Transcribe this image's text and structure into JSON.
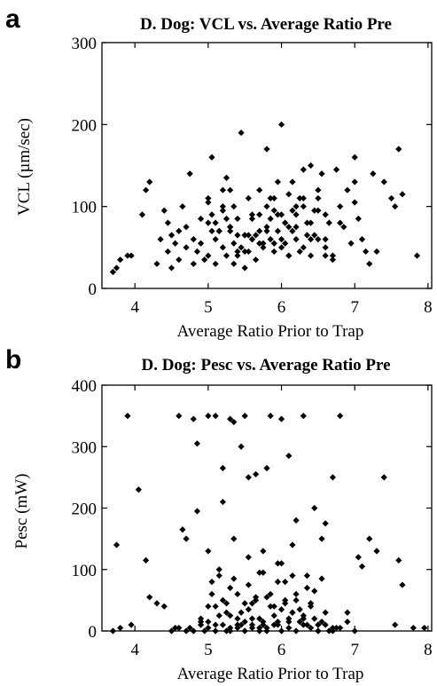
{
  "chart_data": [
    {
      "panel_label": "a",
      "type": "scatter",
      "title": "D. Dog: VCL vs. Average Ratio Pre",
      "xlabel": "Average Ratio Prior to Trap",
      "ylabel": "VCL (µm/sec)",
      "xlim": [
        3.55,
        8.05
      ],
      "ylim": [
        0,
        300
      ],
      "xticks": [
        4,
        5,
        6,
        7,
        8
      ],
      "yticks": [
        0,
        100,
        200,
        300
      ],
      "grid": false,
      "marker": "diamond",
      "color": "#000000",
      "series": [
        {
          "x": [
            3.7,
            3.75,
            3.8,
            3.9,
            3.95,
            4.1,
            4.15,
            4.2,
            4.3,
            4.35,
            4.4,
            4.45,
            4.45,
            4.5,
            4.5,
            4.55,
            4.6,
            4.6,
            4.65,
            4.7,
            4.75,
            4.8,
            4.8,
            4.85,
            4.9,
            4.95,
            5.0,
            5.0,
            5.05,
            5.05,
            5.1,
            5.1,
            5.15,
            5.2,
            5.2,
            5.25,
            5.25,
            5.3,
            5.3,
            5.35,
            5.35,
            5.4,
            5.4,
            5.45,
            5.5,
            5.5,
            5.55,
            5.55,
            5.6,
            5.6,
            5.65,
            5.7,
            5.7,
            5.75,
            5.8,
            5.8,
            5.85,
            5.85,
            5.9,
            5.9,
            5.95,
            5.95,
            6.0,
            6.0,
            6.05,
            6.05,
            6.1,
            6.1,
            6.15,
            6.15,
            6.2,
            6.2,
            6.25,
            6.3,
            6.3,
            6.35,
            6.4,
            6.4,
            6.45,
            6.5,
            6.5,
            6.55,
            6.6,
            6.6,
            6.65,
            6.7,
            6.75,
            6.8,
            6.85,
            6.9,
            6.95,
            7.0,
            7.0,
            7.05,
            7.1,
            7.15,
            7.25,
            7.3,
            7.4,
            7.5,
            7.55,
            7.6,
            7.65,
            7.85,
            5.0,
            5.1,
            5.2,
            5.3,
            5.4,
            5.5,
            5.6,
            5.7,
            5.8,
            5.9,
            6.0,
            6.1,
            6.2,
            6.3,
            6.4,
            6.5,
            6.6,
            5.05,
            5.25,
            5.45,
            5.65,
            5.85,
            6.05,
            6.25,
            6.45,
            5.15,
            5.35,
            5.55,
            5.75,
            5.95,
            6.15,
            6.35,
            4.9,
            5.0,
            5.2,
            5.4,
            5.6,
            5.8,
            6.0,
            6.2,
            6.4,
            6.6,
            6.8,
            4.7,
            5.3,
            5.5,
            5.7,
            5.9,
            6.1,
            6.3,
            6.5,
            6.7,
            7.0,
            7.2
          ],
          "y": [
            20,
            25,
            35,
            40,
            40,
            90,
            120,
            130,
            30,
            60,
            95,
            80,
            45,
            25,
            65,
            55,
            35,
            70,
            100,
            50,
            140,
            30,
            60,
            45,
            55,
            35,
            80,
            40,
            160,
            90,
            30,
            60,
            70,
            50,
            95,
            40,
            135,
            75,
            120,
            55,
            30,
            85,
            45,
            190,
            65,
            25,
            110,
            45,
            90,
            60,
            35,
            120,
            70,
            50,
            100,
            170,
            60,
            85,
            110,
            45,
            70,
            130,
            90,
            200,
            55,
            80,
            115,
            40,
            95,
            130,
            75,
            60,
            110,
            100,
            145,
            80,
            40,
            150,
            65,
            110,
            95,
            140,
            60,
            90,
            80,
            35,
            145,
            100,
            75,
            120,
            55,
            130,
            160,
            85,
            60,
            45,
            140,
            45,
            130,
            110,
            100,
            170,
            115,
            40,
            110,
            80,
            100,
            75,
            65,
            45,
            85,
            55,
            70,
            95,
            60,
            75,
            90,
            50,
            80,
            60,
            40,
            70,
            85,
            50,
            65,
            110,
            80,
            45,
            95,
            70,
            100,
            65,
            55,
            90,
            70,
            65,
            85,
            105,
            120,
            40,
            60,
            75,
            50,
            100,
            60,
            50,
            80,
            75,
            70,
            65,
            90,
            55,
            40,
            110,
            120,
            40,
            105,
            30
          ]
        }
      ]
    },
    {
      "panel_label": "b",
      "type": "scatter",
      "title": "D. Dog: Pesc vs. Average Ratio Pre",
      "xlabel": "Average Ratio Prior to Trap",
      "ylabel": "Pesc (mW)",
      "xlim": [
        3.55,
        8.05
      ],
      "ylim": [
        0,
        400
      ],
      "xticks": [
        4,
        5,
        6,
        7,
        8
      ],
      "yticks": [
        0,
        100,
        200,
        300,
        400
      ],
      "grid": false,
      "marker": "diamond",
      "color": "#000000",
      "series": [
        {
          "x": [
            3.7,
            3.75,
            3.8,
            3.9,
            3.95,
            4.05,
            4.15,
            4.2,
            4.3,
            4.4,
            4.5,
            4.55,
            4.6,
            4.65,
            4.7,
            4.75,
            4.8,
            4.85,
            4.85,
            4.9,
            4.95,
            5.0,
            5.0,
            5.05,
            5.1,
            5.15,
            5.2,
            5.2,
            5.25,
            5.3,
            5.3,
            5.35,
            5.4,
            5.45,
            5.5,
            5.5,
            5.55,
            5.6,
            5.65,
            5.7,
            5.7,
            5.75,
            5.8,
            5.85,
            5.9,
            5.95,
            6.0,
            6.0,
            6.05,
            6.1,
            6.15,
            6.2,
            6.25,
            6.3,
            6.35,
            6.4,
            6.45,
            6.5,
            6.55,
            6.6,
            6.65,
            6.7,
            6.75,
            6.8,
            6.9,
            7.0,
            7.05,
            7.1,
            7.2,
            7.3,
            7.4,
            7.55,
            7.6,
            7.65,
            7.8,
            7.95,
            4.6,
            4.7,
            4.9,
            5.0,
            5.1,
            5.15,
            5.25,
            5.3,
            5.4,
            5.45,
            5.55,
            5.6,
            5.65,
            5.75,
            5.8,
            5.85,
            5.9,
            5.95,
            6.05,
            6.1,
            6.15,
            6.2,
            6.3,
            6.35,
            6.4,
            6.45,
            6.5,
            6.55,
            4.8,
            5.0,
            5.1,
            5.2,
            5.3,
            5.4,
            5.5,
            5.6,
            5.7,
            5.8,
            5.9,
            6.0,
            6.1,
            6.2,
            6.3,
            6.4,
            6.5,
            6.6,
            6.7,
            6.8,
            5.05,
            5.25,
            5.45,
            5.65,
            5.85,
            6.05,
            6.25,
            6.45,
            5.15,
            5.35,
            5.55,
            5.75,
            5.95,
            6.15,
            6.35,
            6.55,
            5.0,
            5.2,
            5.4,
            5.6,
            5.8,
            6.0,
            6.2,
            6.4,
            6.6,
            4.9,
            5.1,
            5.3,
            5.5,
            5.7,
            5.9,
            6.1,
            6.3,
            6.5,
            6.7,
            6.9,
            5.35,
            5.55,
            5.75,
            5.95,
            6.15
          ],
          "y": [
            0,
            140,
            5,
            350,
            10,
            230,
            115,
            55,
            45,
            40,
            0,
            5,
            350,
            165,
            150,
            5,
            345,
            305,
            195,
            15,
            0,
            130,
            350,
            80,
            350,
            90,
            265,
            210,
            0,
            345,
            70,
            340,
            10,
            300,
            350,
            45,
            250,
            5,
            255,
            0,
            95,
            10,
            265,
            350,
            40,
            15,
            345,
            110,
            80,
            285,
            30,
            180,
            15,
            350,
            90,
            40,
            200,
            10,
            150,
            175,
            0,
            250,
            5,
            350,
            30,
            0,
            120,
            105,
            150,
            130,
            250,
            10,
            115,
            75,
            5,
            5,
            5,
            0,
            10,
            15,
            40,
            25,
            30,
            5,
            20,
            10,
            35,
            20,
            50,
            15,
            5,
            60,
            25,
            10,
            45,
            20,
            30,
            60,
            25,
            10,
            45,
            20,
            0,
            15,
            0,
            5,
            0,
            10,
            0,
            5,
            0,
            10,
            5,
            0,
            10,
            0,
            5,
            0,
            10,
            5,
            0,
            10,
            0,
            5,
            60,
            45,
            30,
            55,
            40,
            50,
            35,
            65,
            100,
            85,
            75,
            95,
            80,
            90,
            70,
            85,
            40,
            50,
            60,
            45,
            55,
            35,
            50,
            45,
            30,
            20,
            10,
            25,
            15,
            20,
            10,
            15,
            20,
            10,
            5,
            15,
            150,
            120,
            130,
            110,
            140
          ]
        }
      ]
    }
  ]
}
